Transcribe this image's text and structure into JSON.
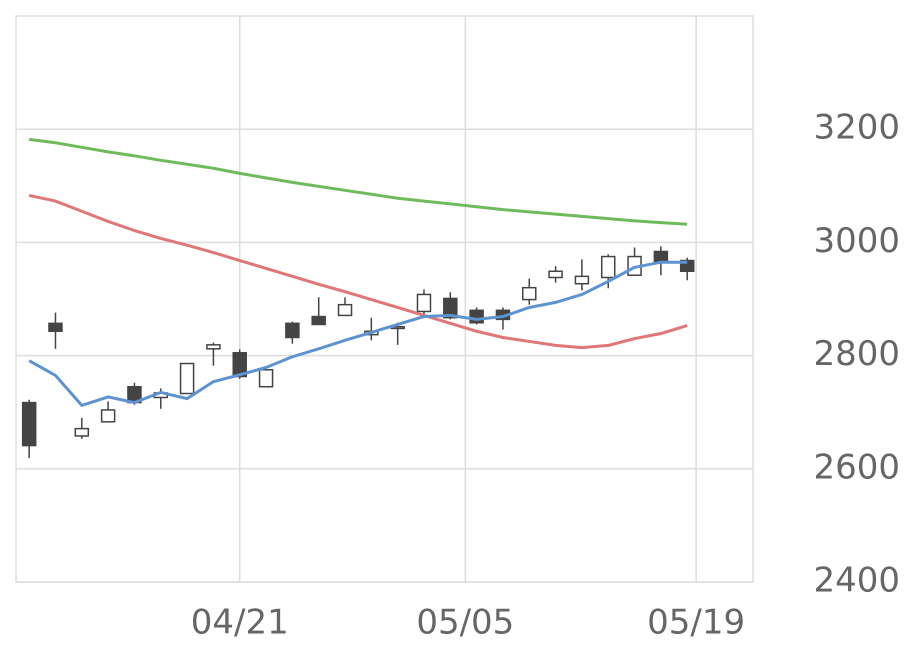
{
  "chart_data": {
    "type": "candlestick",
    "x": [
      0,
      1,
      2,
      3,
      4,
      5,
      6,
      7,
      8,
      9,
      10,
      11,
      12,
      13,
      14,
      15,
      16,
      17,
      18,
      19,
      20,
      21,
      22,
      23,
      24,
      25
    ],
    "open": [
      2717,
      2857,
      2658,
      2683,
      2745,
      2726,
      2733,
      2812,
      2805,
      2745,
      2857,
      2869,
      2871,
      2837,
      2848,
      2878,
      2901,
      2880,
      2880,
      2899,
      2938,
      2927,
      2938,
      2942,
      2984,
      2968
    ],
    "close": [
      2641,
      2843,
      2671,
      2704,
      2717,
      2734,
      2786,
      2819,
      2763,
      2775,
      2832,
      2855,
      2890,
      2843,
      2851,
      2908,
      2867,
      2858,
      2864,
      2920,
      2949,
      2940,
      2975,
      2975,
      2966,
      2949
    ],
    "high": [
      2722,
      2876,
      2690,
      2719,
      2752,
      2742,
      2786,
      2823,
      2811,
      2775,
      2860,
      2903,
      2903,
      2867,
      2858,
      2917,
      2912,
      2885,
      2885,
      2936,
      2958,
      2970,
      2979,
      2991,
      2993,
      2973
    ],
    "low": [
      2619,
      2812,
      2653,
      2683,
      2713,
      2706,
      2733,
      2782,
      2759,
      2745,
      2821,
      2855,
      2871,
      2827,
      2819,
      2867,
      2864,
      2855,
      2846,
      2890,
      2929,
      2915,
      2919,
      2942,
      2942,
      2933
    ],
    "up_color": "#ffffff",
    "down_color": "#444444",
    "edge_color": "#444444",
    "lines": [
      {
        "color": "#6fbb5c",
        "values": [
          3182,
          3176,
          3168,
          3160,
          3153,
          3145,
          3138,
          3131,
          3122,
          3114,
          3106,
          3099,
          3092,
          3085,
          3078,
          3073,
          3068,
          3063,
          3058,
          3054,
          3050,
          3046,
          3042,
          3038,
          3035,
          3032
        ]
      },
      {
        "color": "#e07676",
        "values": [
          3083,
          3073,
          3055,
          3037,
          3021,
          3007,
          2995,
          2982,
          2968,
          2954,
          2940,
          2926,
          2913,
          2899,
          2885,
          2871,
          2857,
          2843,
          2832,
          2825,
          2818,
          2814,
          2818,
          2830,
          2839,
          2853
        ]
      },
      {
        "color": "#5e93d1",
        "values": [
          2791,
          2765,
          2712,
          2727,
          2717,
          2735,
          2724,
          2754,
          2766,
          2779,
          2798,
          2812,
          2827,
          2841,
          2855,
          2869,
          2871,
          2864,
          2869,
          2885,
          2894,
          2908,
          2931,
          2956,
          2965,
          2965
        ]
      }
    ],
    "xlim": [
      -0.5,
      27.5
    ],
    "xticks": [
      {
        "value": 8,
        "label": "04/21"
      },
      {
        "value": 16.57,
        "label": "05/05"
      },
      {
        "value": 25.34,
        "label": "05/19"
      }
    ],
    "ylim": [
      2400,
      3400
    ],
    "yticks": [
      2400,
      2600,
      2800,
      3000,
      3200
    ],
    "grid": true
  }
}
